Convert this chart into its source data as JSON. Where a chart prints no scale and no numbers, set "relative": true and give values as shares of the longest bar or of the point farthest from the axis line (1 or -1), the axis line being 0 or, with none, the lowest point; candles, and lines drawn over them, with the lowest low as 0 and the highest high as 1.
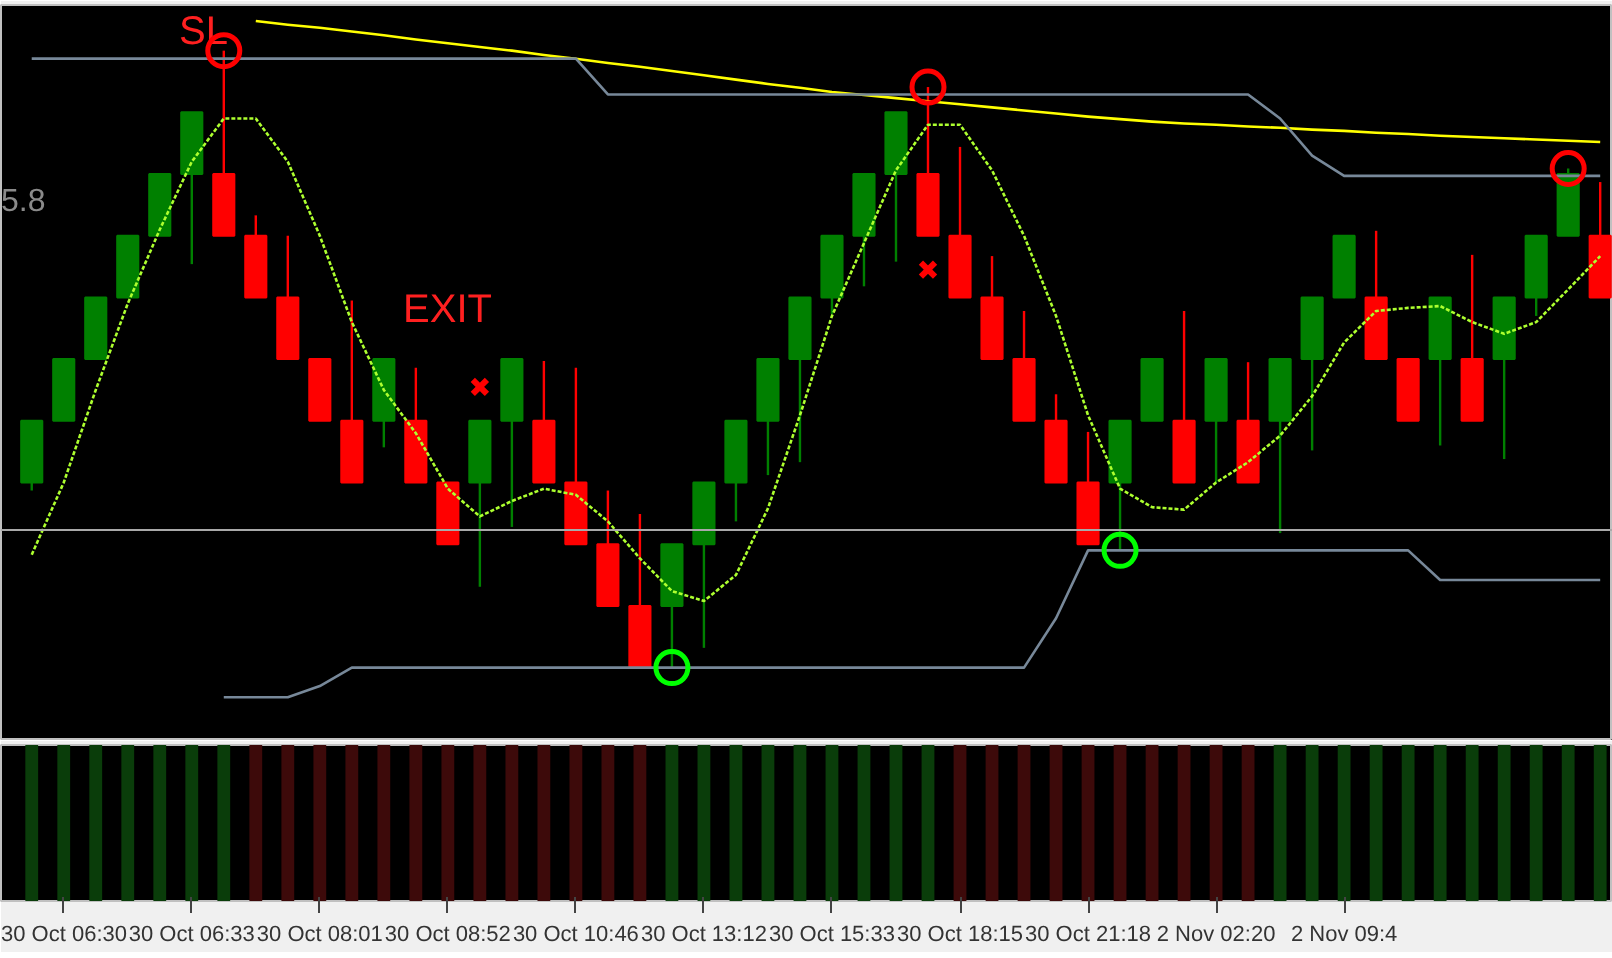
{
  "chart_data": [
    {
      "type": "candlestick",
      "relative": true,
      "tick_labels": false,
      "categories": [
        null,
        null,
        null,
        null,
        null,
        null,
        null,
        null,
        null,
        null,
        null,
        null,
        null,
        null,
        null,
        null,
        null,
        null,
        null,
        null,
        null,
        null,
        null,
        null,
        null,
        null,
        null,
        null,
        null,
        null,
        null,
        null,
        null,
        null,
        null,
        null,
        null,
        null,
        null,
        null,
        null,
        null,
        null,
        null,
        null,
        null,
        null,
        null,
        null,
        null
      ],
      "ohlc": [
        [
          0.3,
          0.4,
          0.287,
          0.4
        ],
        [
          0.4,
          0.5,
          0.4,
          0.5
        ],
        [
          0.5,
          0.6,
          0.5,
          0.6
        ],
        [
          0.6,
          0.7,
          0.6,
          0.7
        ],
        [
          0.7,
          0.8,
          0.7,
          0.8
        ],
        [
          0.8,
          0.9,
          0.654,
          0.9
        ],
        [
          0.8,
          1.0,
          0.7,
          0.7
        ],
        [
          0.7,
          0.733,
          0.6,
          0.6
        ],
        [
          0.6,
          0.7,
          0.5,
          0.5
        ],
        [
          0.5,
          0.5,
          0.4,
          0.4
        ],
        [
          0.4,
          0.595,
          0.3,
          0.3
        ],
        [
          0.4,
          0.5,
          0.357,
          0.5
        ],
        [
          0.4,
          0.486,
          0.3,
          0.3
        ],
        [
          0.3,
          0.3,
          0.2,
          0.2
        ],
        [
          0.3,
          0.4,
          0.131,
          0.4
        ],
        [
          0.4,
          0.5,
          0.228,
          0.5
        ],
        [
          0.4,
          0.497,
          0.3,
          0.3
        ],
        [
          0.3,
          0.486,
          0.2,
          0.2
        ],
        [
          0.2,
          0.287,
          0.1,
          0.1
        ],
        [
          0.1,
          0.249,
          0.0,
          0.0
        ],
        [
          0.1,
          0.2,
          0.0,
          0.2
        ],
        [
          0.2,
          0.3,
          0.032,
          0.3
        ],
        [
          0.3,
          0.4,
          0.237,
          0.4
        ],
        [
          0.4,
          0.5,
          0.312,
          0.5
        ],
        [
          0.5,
          0.6,
          0.333,
          0.6
        ],
        [
          0.6,
          0.7,
          0.573,
          0.7
        ],
        [
          0.7,
          0.8,
          0.618,
          0.8
        ],
        [
          0.8,
          0.9,
          0.658,
          0.9
        ],
        [
          0.8,
          0.941,
          0.7,
          0.7
        ],
        [
          0.7,
          0.844,
          0.6,
          0.6
        ],
        [
          0.6,
          0.667,
          0.5,
          0.5
        ],
        [
          0.5,
          0.578,
          0.4,
          0.4
        ],
        [
          0.4,
          0.443,
          0.3,
          0.3
        ],
        [
          0.3,
          0.382,
          0.2,
          0.2
        ],
        [
          0.3,
          0.4,
          0.19,
          0.4
        ],
        [
          0.4,
          0.5,
          0.4,
          0.5
        ],
        [
          0.4,
          0.578,
          0.3,
          0.3
        ],
        [
          0.4,
          0.5,
          0.3,
          0.5
        ],
        [
          0.4,
          0.495,
          0.3,
          0.3
        ],
        [
          0.4,
          0.5,
          0.218,
          0.5
        ],
        [
          0.5,
          0.6,
          0.352,
          0.6
        ],
        [
          0.6,
          0.7,
          0.6,
          0.7
        ],
        [
          0.6,
          0.708,
          0.5,
          0.5
        ],
        [
          0.5,
          0.5,
          0.4,
          0.4
        ],
        [
          0.5,
          0.6,
          0.36,
          0.6
        ],
        [
          0.5,
          0.669,
          0.4,
          0.4
        ],
        [
          0.5,
          0.6,
          0.338,
          0.6
        ],
        [
          0.6,
          0.7,
          0.57,
          0.7
        ],
        [
          0.7,
          0.809,
          0.7,
          0.8
        ],
        [
          0.7,
          0.787,
          0.6,
          0.6
        ]
      ],
      "colors": [
        "#008000",
        "#008000",
        "#008000",
        "#008000",
        "#008000",
        "#008000",
        "#ff0000",
        "#ff0000",
        "#ff0000",
        "#ff0000",
        "#ff0000",
        "#008000",
        "#ff0000",
        "#ff0000",
        "#008000",
        "#008000",
        "#ff0000",
        "#ff0000",
        "#ff0000",
        "#ff0000",
        "#008000",
        "#008000",
        "#008000",
        "#008000",
        "#008000",
        "#008000",
        "#008000",
        "#008000",
        "#ff0000",
        "#ff0000",
        "#ff0000",
        "#ff0000",
        "#ff0000",
        "#ff0000",
        "#008000",
        "#008000",
        "#ff0000",
        "#008000",
        "#ff0000",
        "#008000",
        "#008000",
        "#008000",
        "#ff0000",
        "#ff0000",
        "#008000",
        "#ff0000",
        "#008000",
        "#008000",
        "#008000",
        "#ff0000"
      ],
      "series": [
        {
          "type": "line",
          "color": "#adff2f",
          "line_style": "dotted",
          "values": [
            0.183,
            0.3,
            0.45,
            0.59,
            0.71,
            0.82,
            0.89,
            0.89,
            0.82,
            0.7,
            0.56,
            0.45,
            0.38,
            0.29,
            0.245,
            0.27,
            0.29,
            0.28,
            0.237,
            0.177,
            0.124,
            0.108,
            0.15,
            0.258,
            0.409,
            0.57,
            0.688,
            0.806,
            0.88,
            0.88,
            0.806,
            0.7,
            0.57,
            0.409,
            0.29,
            0.26,
            0.256,
            0.3,
            0.333,
            0.376,
            0.44,
            0.527,
            0.578,
            0.583,
            0.586,
            0.56,
            0.541,
            0.56,
            0.613,
            0.667
          ]
        },
        {
          "type": "line",
          "color": "#ffff00",
          "line_style": "solid",
          "values": [
            null,
            null,
            null,
            null,
            null,
            null,
            null,
            1.048,
            1.042,
            1.037,
            1.031,
            1.025,
            1.018,
            1.012,
            1.006,
            1.0,
            0.993,
            0.987,
            0.98,
            0.974,
            0.967,
            0.96,
            0.953,
            0.946,
            0.94,
            0.933,
            0.928,
            0.923,
            0.918,
            0.913,
            0.908,
            0.903,
            0.898,
            0.893,
            0.889,
            0.885,
            0.882,
            0.88,
            0.877,
            0.875,
            0.872,
            0.87,
            0.867,
            0.865,
            0.862,
            0.86,
            0.858,
            0.856,
            0.854,
            0.852
          ]
        },
        {
          "type": "line",
          "color": "#778899",
          "line_style": "solid",
          "values": [
            0.987,
            0.987,
            0.987,
            0.987,
            0.987,
            0.987,
            0.987,
            0.987,
            0.987,
            0.987,
            0.987,
            0.987,
            0.987,
            0.987,
            0.987,
            0.987,
            0.987,
            0.987,
            0.929,
            0.929,
            0.929,
            0.929,
            0.929,
            0.929,
            0.929,
            0.929,
            0.929,
            0.929,
            0.929,
            0.929,
            0.929,
            0.929,
            0.929,
            0.929,
            0.929,
            0.929,
            0.929,
            0.929,
            0.929,
            0.89,
            0.83,
            0.797,
            0.797,
            0.797,
            0.797,
            0.797,
            0.797,
            0.797,
            0.797,
            0.797
          ]
        },
        {
          "type": "line",
          "color": "#778899",
          "line_style": "solid",
          "values": [
            null,
            null,
            null,
            null,
            null,
            null,
            -0.048,
            -0.048,
            -0.048,
            -0.03,
            0.0,
            0.0,
            0.0,
            0.0,
            0.0,
            0.0,
            0.0,
            0.0,
            0.0,
            0.0,
            0.0,
            0.0,
            0.0,
            0.0,
            0.0,
            0.0,
            0.0,
            0.0,
            0.0,
            0.0,
            0.0,
            0.0,
            0.08,
            0.19,
            0.19,
            0.19,
            0.19,
            0.19,
            0.19,
            0.19,
            0.19,
            0.19,
            0.19,
            0.19,
            0.142,
            0.142,
            0.142,
            0.142,
            0.142,
            0.142
          ]
        },
        {
          "type": "scatter",
          "marker": "circle",
          "color": "#ff0000",
          "values": [
            null,
            null,
            null,
            null,
            null,
            null,
            1.0,
            null,
            null,
            null,
            null,
            null,
            null,
            null,
            null,
            null,
            null,
            null,
            null,
            null,
            null,
            null,
            null,
            null,
            null,
            null,
            null,
            null,
            0.941,
            null,
            null,
            null,
            null,
            null,
            null,
            null,
            null,
            null,
            null,
            null,
            null,
            null,
            null,
            null,
            null,
            null,
            null,
            null,
            0.809,
            null
          ]
        },
        {
          "type": "scatter",
          "marker": "circle",
          "color": "#00ff00",
          "values": [
            null,
            null,
            null,
            null,
            null,
            null,
            null,
            null,
            null,
            null,
            null,
            null,
            null,
            null,
            null,
            null,
            null,
            null,
            null,
            null,
            0.0,
            null,
            null,
            null,
            null,
            null,
            null,
            null,
            null,
            null,
            null,
            null,
            null,
            null,
            0.19,
            null,
            null,
            null,
            null,
            null,
            null,
            null,
            null,
            null,
            null,
            null,
            null,
            null,
            null,
            null
          ]
        },
        {
          "type": "scatter",
          "marker": "cross",
          "color": "#ff0000",
          "values": [
            null,
            null,
            null,
            null,
            null,
            null,
            null,
            null,
            null,
            null,
            null,
            null,
            null,
            null,
            0.455,
            null,
            null,
            null,
            null,
            null,
            null,
            null,
            null,
            null,
            null,
            null,
            null,
            null,
            0.645,
            null,
            null,
            null,
            null,
            null,
            null,
            null,
            null,
            null,
            null,
            null,
            null,
            null,
            null,
            null,
            null,
            null,
            null,
            null,
            null,
            null
          ]
        }
      ],
      "ref_lines": [
        {
          "axis": "y",
          "value": 0.223,
          "color": "#a9a9a9"
        }
      ],
      "annotations": [
        "SL",
        "EXIT",
        "5.8"
      ]
    },
    {
      "type": "bar",
      "relative": true,
      "tick_labels": "x",
      "categories": [
        null,
        "30 Oct 06:30",
        null,
        null,
        null,
        "30 Oct 06:33",
        null,
        null,
        null,
        "30 Oct 08:01",
        null,
        null,
        null,
        "30 Oct 08:52",
        null,
        null,
        null,
        "30 Oct 10:46",
        null,
        null,
        null,
        "30 Oct 13:12",
        null,
        null,
        null,
        "30 Oct 15:33",
        null,
        null,
        null,
        "30 Oct 18:15",
        null,
        null,
        null,
        "30 Oct 21:18",
        null,
        null,
        null,
        "2 Nov 02:20",
        null,
        null,
        null,
        "2 Nov 09:4",
        null,
        null,
        null,
        null,
        null,
        null,
        null,
        null
      ],
      "values": [
        1,
        1,
        1,
        1,
        1,
        1,
        1,
        1,
        1,
        1,
        1,
        1,
        1,
        1,
        1,
        1,
        1,
        1,
        1,
        1,
        1,
        1,
        1,
        1,
        1,
        1,
        1,
        1,
        1,
        1,
        1,
        1,
        1,
        1,
        1,
        1,
        1,
        1,
        1,
        1,
        1,
        1,
        1,
        1,
        1,
        1,
        1,
        1,
        1,
        1
      ],
      "colors": [
        "#0a3d0a",
        "#0a3d0a",
        "#0a3d0a",
        "#0a3d0a",
        "#0a3d0a",
        "#0a3d0a",
        "#0a3d0a",
        "#3d0a0a",
        "#3d0a0a",
        "#3d0a0a",
        "#3d0a0a",
        "#3d0a0a",
        "#3d0a0a",
        "#3d0a0a",
        "#3d0a0a",
        "#3d0a0a",
        "#3d0a0a",
        "#3d0a0a",
        "#3d0a0a",
        "#3d0a0a",
        "#0a3d0a",
        "#0a3d0a",
        "#0a3d0a",
        "#0a3d0a",
        "#0a3d0a",
        "#0a3d0a",
        "#0a3d0a",
        "#0a3d0a",
        "#0a3d0a",
        "#3d0a0a",
        "#3d0a0a",
        "#3d0a0a",
        "#3d0a0a",
        "#3d0a0a",
        "#3d0a0a",
        "#3d0a0a",
        "#3d0a0a",
        "#3d0a0a",
        "#3d0a0a",
        "#0a3d0a",
        "#0a3d0a",
        "#0a3d0a",
        "#0a3d0a",
        "#0a3d0a",
        "#0a3d0a",
        "#0a3d0a",
        "#0a3d0a",
        "#0a3d0a",
        "#0a3d0a",
        "#0a3d0a"
      ]
    }
  ]
}
